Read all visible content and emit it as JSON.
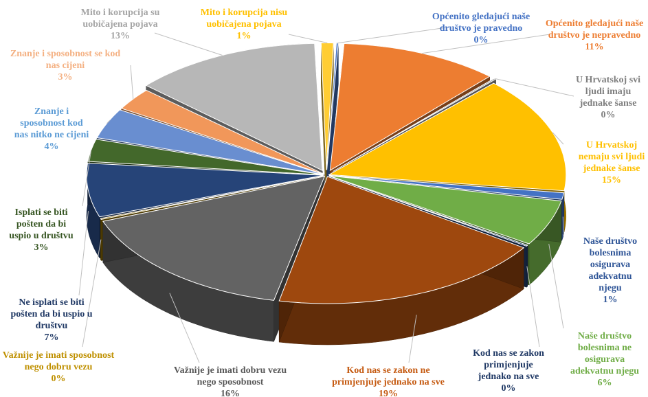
{
  "chart_data": {
    "type": "pie",
    "title": "",
    "categories": [
      "Općenito gledajući naše društvo je pravedno",
      "Općenito gledajući naše društvo je nepravedno",
      "U Hrvatskoj svi ljudi imaju jednake šanse",
      "U Hrvatskoj nemaju svi ljudi jednake šanse",
      "Naše društvo bolesnima osigurava adekvatnu njegu",
      "Naše društvo bolesnima ne osigurava adekvatnu njegu",
      "Kod nas se zakon primjenjuje jednako na sve",
      "Kod nas se zakon ne primjenjuje jednako na sve",
      "Važnije je imati dobru vezu nego sposobnost",
      "Važnije je imati sposobnost nego dobru vezu",
      "Ne isplati se biti pošten da bi uspio u društvu",
      "Isplati se biti pošten da bi uspio u društvu",
      "Znanje i sposobnost kod nas nitko ne cijeni",
      "Znanje i sposobnost se kod nas cijeni",
      "Mito i korupcija su uobičajena pojava",
      "Mito i korupcija nisu uobičajena pojava"
    ],
    "values": [
      0.3,
      11,
      0.3,
      15,
      1,
      6,
      0.3,
      19,
      16,
      0.3,
      7,
      3,
      4,
      3,
      13,
      1
    ],
    "value_labels": [
      "0%",
      "11%",
      "0%",
      "15%",
      "1%",
      "6%",
      "0%",
      "19%",
      "16%",
      "0%",
      "7%",
      "3%",
      "4%",
      "3%",
      "13%",
      "1%"
    ],
    "label_lines": [
      [
        "Općenito gledajući naše",
        "društvo je pravedno"
      ],
      [
        "Općenito gledajući naše",
        "društvo je nepravedno"
      ],
      [
        "U Hrvatskoj svi",
        "ljudi imaju",
        "jednake šanse"
      ],
      [
        "U Hrvatskoj",
        "nemaju svi ljudi",
        "jednake šanse"
      ],
      [
        "Naše društvo",
        "bolesnima",
        "osigurava",
        "adekvatnu",
        "njegu"
      ],
      [
        "Naše društvo",
        "bolesnima ne",
        "osigurava",
        "adekvatnu njegu"
      ],
      [
        "Kod nas se zakon",
        "primjenjuje",
        "jednako na sve"
      ],
      [
        "Kod nas se zakon ne",
        "primjenjuje jednako na sve"
      ],
      [
        "Važnije je imati dobru vezu",
        "nego sposobnost"
      ],
      [
        "Važnije je imati sposobnost",
        "nego dobru vezu"
      ],
      [
        "Ne isplati se biti",
        "pošten da bi uspio u",
        "društvu"
      ],
      [
        "Isplati se biti",
        "pošten da bi",
        "uspio u društvu"
      ],
      [
        "Znanje i",
        "sposobnost kod",
        "nas nitko ne cijeni"
      ],
      [
        "Znanje i sposobnost se kod",
        "nas cijeni"
      ],
      [
        "Mito i korupcija su",
        "uobičajena pojava"
      ],
      [
        "Mito i korupcija nisu",
        "uobičajena pojava"
      ]
    ],
    "colors": [
      "#4472c4",
      "#ed7d31",
      "#a5a5a5",
      "#ffc000",
      "#4472c4",
      "#70ad47",
      "#264478",
      "#9e480e",
      "#636363",
      "#997300",
      "#264478",
      "#43682b",
      "#698ed0",
      "#f1975a",
      "#b7b7b7",
      "#ffcd33"
    ],
    "label_colors": [
      "#4472c4",
      "#ed7d31",
      "#7f7f7f",
      "#ffc000",
      "#2f5597",
      "#70ad47",
      "#1f3864",
      "#c55a11",
      "#595959",
      "#bf9000",
      "#1f3864",
      "#375623",
      "#5b9bd5",
      "#f4b183",
      "#a5a5a5",
      "#ffc000"
    ],
    "explode": [
      1,
      1,
      1,
      0,
      0,
      0,
      0,
      0,
      0,
      0,
      0,
      0,
      0,
      0,
      1,
      1
    ],
    "legend": "none",
    "style": "3d-exploded-pie"
  }
}
